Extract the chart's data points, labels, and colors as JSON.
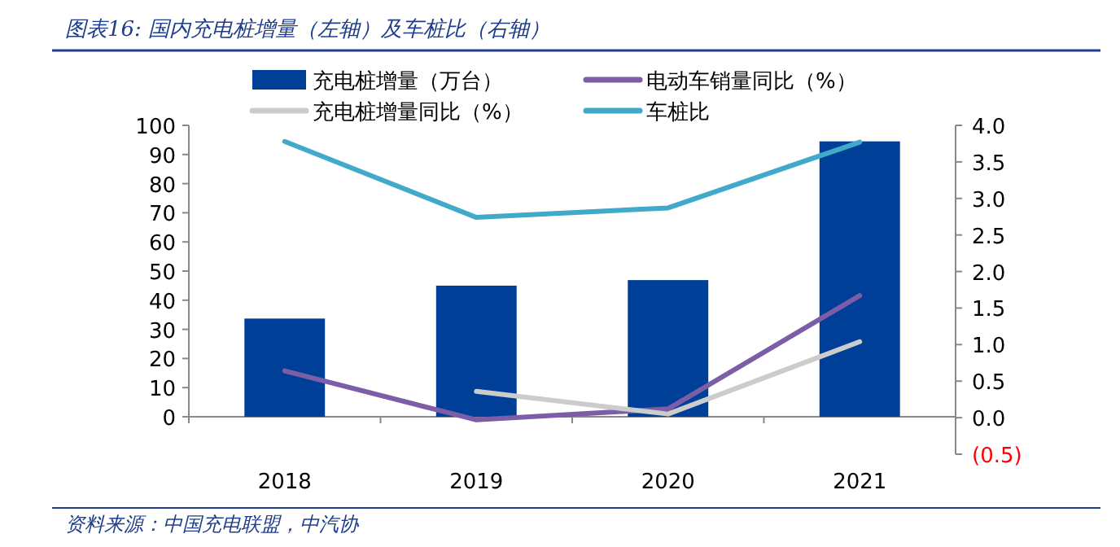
{
  "chart_data": {
    "type": "bar",
    "title": "图表16:  国内充电桩增量（左轴）及车桩比（右轴）",
    "categories": [
      "2018",
      "2019",
      "2020",
      "2021"
    ],
    "series": [
      {
        "name": "充电桩增量（万台）",
        "color": "#003f98",
        "values": [
          33.7,
          45,
          46.9,
          94.5
        ]
      },
      {
        "name": "电动车销量同比（%）",
        "type": "line",
        "axis": "y2",
        "color": "#7b5ea7",
        "values": [
          0.64,
          -0.03,
          0.12,
          1.67
        ]
      },
      {
        "name": "充电桩增量同比（%）",
        "type": "line",
        "axis": "y2",
        "color": "#cccccc",
        "values": [
          null,
          0.36,
          0.05,
          1.04
        ]
      },
      {
        "name": "车桩比",
        "type": "line",
        "axis": "y2",
        "color": "#41a9c9",
        "values": [
          3.78,
          2.74,
          2.87,
          3.77
        ]
      }
    ],
    "ylim": [
      0,
      100
    ],
    "yticks": [
      0,
      10,
      20,
      30,
      40,
      50,
      60,
      70,
      80,
      90,
      100
    ],
    "y2lim": [
      -0.5,
      4
    ],
    "y2ticks": [
      {
        "value": -0.5,
        "label": "(0.5)"
      },
      {
        "value": 0,
        "label": "0.0"
      },
      {
        "value": 0.5,
        "label": "0.5"
      },
      {
        "value": 1,
        "label": "1.0"
      },
      {
        "value": 1.5,
        "label": "1.5"
      },
      {
        "value": 2,
        "label": "2.0"
      },
      {
        "value": 2.5,
        "label": "2.5"
      },
      {
        "value": 3,
        "label": "3.0"
      },
      {
        "value": 3.5,
        "label": "3.5"
      },
      {
        "value": 4,
        "label": "4.0"
      }
    ],
    "legend": "top",
    "grid": false,
    "annotations": [
      "资料来源：中国充电联盟，中汽协"
    ]
  }
}
